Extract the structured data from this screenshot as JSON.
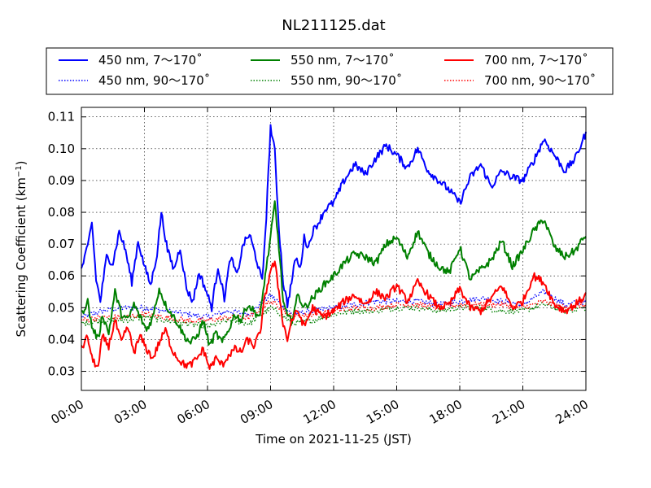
{
  "chart_data": {
    "type": "line",
    "title": "NL211125.dat",
    "xlabel": "Time on 2021-11-25 (JST)",
    "ylabel": "Scattering Coefficient (km",
    "ylabel_sup": "−1",
    "ylabel_close": ")",
    "xlim_hours": [
      0,
      24
    ],
    "ylim": [
      0.024,
      0.113
    ],
    "x_ticks": [
      {
        "h": 0,
        "label": "00:00"
      },
      {
        "h": 3,
        "label": "03:00"
      },
      {
        "h": 6,
        "label": "06:00"
      },
      {
        "h": 9,
        "label": "09:00"
      },
      {
        "h": 12,
        "label": "12:00"
      },
      {
        "h": 15,
        "label": "15:00"
      },
      {
        "h": 18,
        "label": "18:00"
      },
      {
        "h": 21,
        "label": "21:00"
      },
      {
        "h": 24,
        "label": "24:00"
      }
    ],
    "y_ticks": [
      {
        "v": 0.03,
        "label": "0.03"
      },
      {
        "v": 0.04,
        "label": "0.04"
      },
      {
        "v": 0.05,
        "label": "0.05"
      },
      {
        "v": 0.06,
        "label": "0.06"
      },
      {
        "v": 0.07,
        "label": "0.07"
      },
      {
        "v": 0.08,
        "label": "0.08"
      },
      {
        "v": 0.09,
        "label": "0.09"
      },
      {
        "v": 0.1,
        "label": "0.10"
      },
      {
        "v": 0.11,
        "label": "0.11"
      }
    ],
    "grid": true,
    "legend_position": "top",
    "series": [
      {
        "name": "450 nm, 7～170˚",
        "color": "#0000ff",
        "style": "solid",
        "x": [
          0.0,
          0.3,
          0.5,
          0.7,
          0.9,
          1.2,
          1.5,
          1.8,
          2.1,
          2.4,
          2.7,
          3.0,
          3.3,
          3.6,
          3.8,
          4.1,
          4.4,
          4.7,
          5.0,
          5.3,
          5.6,
          5.9,
          6.2,
          6.5,
          6.8,
          7.1,
          7.4,
          7.7,
          8.0,
          8.3,
          8.6,
          8.8,
          9.0,
          9.2,
          9.4,
          9.6,
          9.8,
          10.0,
          10.2,
          10.4,
          10.6,
          10.8,
          11.0,
          11.3,
          11.6,
          12.0,
          12.5,
          13.0,
          13.5,
          14.0,
          14.5,
          15.0,
          15.5,
          16.0,
          16.5,
          17.0,
          17.5,
          18.0,
          18.5,
          19.0,
          19.5,
          20.0,
          20.5,
          21.0,
          21.5,
          22.0,
          22.5,
          23.0,
          23.5,
          24.0
        ],
        "y": [
          0.062,
          0.069,
          0.077,
          0.059,
          0.052,
          0.066,
          0.064,
          0.074,
          0.068,
          0.058,
          0.071,
          0.063,
          0.057,
          0.067,
          0.08,
          0.068,
          0.062,
          0.069,
          0.056,
          0.052,
          0.061,
          0.056,
          0.05,
          0.063,
          0.053,
          0.066,
          0.06,
          0.07,
          0.073,
          0.066,
          0.058,
          0.079,
          0.107,
          0.099,
          0.075,
          0.058,
          0.051,
          0.058,
          0.066,
          0.062,
          0.072,
          0.069,
          0.074,
          0.077,
          0.081,
          0.083,
          0.09,
          0.095,
          0.092,
          0.097,
          0.101,
          0.098,
          0.094,
          0.1,
          0.093,
          0.09,
          0.087,
          0.083,
          0.091,
          0.095,
          0.088,
          0.093,
          0.091,
          0.09,
          0.096,
          0.103,
          0.098,
          0.093,
          0.097,
          0.105
        ]
      },
      {
        "name": "450 nm, 90～170˚",
        "color": "#0000ff",
        "style": "dotted",
        "x": [
          0.0,
          1.0,
          2.0,
          3.0,
          4.0,
          5.0,
          6.0,
          7.0,
          8.0,
          9.0,
          9.5,
          10.0,
          11.0,
          12.0,
          13.0,
          14.0,
          15.0,
          16.0,
          17.0,
          18.0,
          19.0,
          20.0,
          21.0,
          22.0,
          23.0,
          24.0
        ],
        "y": [
          0.047,
          0.049,
          0.05,
          0.05,
          0.049,
          0.048,
          0.047,
          0.049,
          0.048,
          0.054,
          0.051,
          0.048,
          0.049,
          0.05,
          0.051,
          0.052,
          0.052,
          0.052,
          0.051,
          0.052,
          0.053,
          0.052,
          0.051,
          0.055,
          0.051,
          0.052
        ]
      },
      {
        "name": "550 nm, 7～170˚",
        "color": "#008000",
        "style": "solid",
        "x": [
          0.0,
          0.3,
          0.5,
          0.8,
          1.0,
          1.3,
          1.6,
          1.9,
          2.2,
          2.5,
          2.8,
          3.1,
          3.4,
          3.7,
          4.0,
          4.3,
          4.6,
          4.9,
          5.2,
          5.5,
          5.8,
          6.1,
          6.4,
          6.7,
          7.0,
          7.3,
          7.6,
          7.9,
          8.2,
          8.5,
          8.7,
          9.0,
          9.2,
          9.4,
          9.6,
          9.8,
          10.0,
          10.3,
          10.6,
          11.0,
          11.5,
          12.0,
          12.5,
          13.0,
          13.5,
          14.0,
          14.5,
          15.0,
          15.5,
          16.0,
          16.5,
          17.0,
          17.5,
          18.0,
          18.5,
          19.0,
          19.5,
          20.0,
          20.5,
          21.0,
          21.5,
          22.0,
          22.5,
          23.0,
          23.5,
          24.0
        ],
        "y": [
          0.048,
          0.052,
          0.044,
          0.04,
          0.048,
          0.042,
          0.055,
          0.048,
          0.046,
          0.051,
          0.047,
          0.043,
          0.047,
          0.056,
          0.051,
          0.048,
          0.045,
          0.041,
          0.039,
          0.041,
          0.046,
          0.038,
          0.042,
          0.039,
          0.043,
          0.048,
          0.046,
          0.051,
          0.049,
          0.047,
          0.058,
          0.072,
          0.083,
          0.069,
          0.052,
          0.047,
          0.046,
          0.054,
          0.05,
          0.053,
          0.057,
          0.06,
          0.064,
          0.067,
          0.066,
          0.064,
          0.07,
          0.072,
          0.066,
          0.074,
          0.067,
          0.063,
          0.061,
          0.069,
          0.059,
          0.062,
          0.065,
          0.071,
          0.063,
          0.068,
          0.074,
          0.078,
          0.069,
          0.066,
          0.068,
          0.073
        ]
      },
      {
        "name": "550 nm, 90～170˚",
        "color": "#008000",
        "style": "dotted",
        "x": [
          0.0,
          1.0,
          2.0,
          3.0,
          4.0,
          5.0,
          6.0,
          7.0,
          8.0,
          9.0,
          9.5,
          10.0,
          11.0,
          12.0,
          13.0,
          14.0,
          15.0,
          16.0,
          17.0,
          18.0,
          19.0,
          20.0,
          21.0,
          22.0,
          23.0,
          24.0
        ],
        "y": [
          0.045,
          0.046,
          0.046,
          0.047,
          0.046,
          0.045,
          0.044,
          0.046,
          0.045,
          0.05,
          0.048,
          0.045,
          0.046,
          0.048,
          0.049,
          0.049,
          0.05,
          0.05,
          0.049,
          0.05,
          0.05,
          0.049,
          0.049,
          0.051,
          0.049,
          0.05
        ]
      },
      {
        "name": "700 nm, 7～170˚",
        "color": "#ff0000",
        "style": "solid",
        "x": [
          0.0,
          0.3,
          0.5,
          0.8,
          1.0,
          1.3,
          1.6,
          1.9,
          2.2,
          2.5,
          2.8,
          3.1,
          3.4,
          3.7,
          4.0,
          4.3,
          4.6,
          4.9,
          5.2,
          5.5,
          5.8,
          6.1,
          6.4,
          6.7,
          7.0,
          7.3,
          7.6,
          7.9,
          8.2,
          8.5,
          8.7,
          9.0,
          9.2,
          9.4,
          9.6,
          9.8,
          10.0,
          10.3,
          10.6,
          11.0,
          11.5,
          12.0,
          12.5,
          13.0,
          13.5,
          14.0,
          14.5,
          15.0,
          15.5,
          16.0,
          16.5,
          17.0,
          17.5,
          18.0,
          18.5,
          19.0,
          19.5,
          20.0,
          20.5,
          21.0,
          21.5,
          22.0,
          22.5,
          23.0,
          23.5,
          24.0
        ],
        "y": [
          0.037,
          0.041,
          0.034,
          0.031,
          0.041,
          0.038,
          0.046,
          0.039,
          0.044,
          0.036,
          0.041,
          0.037,
          0.034,
          0.039,
          0.043,
          0.037,
          0.034,
          0.032,
          0.032,
          0.034,
          0.037,
          0.031,
          0.034,
          0.032,
          0.035,
          0.037,
          0.036,
          0.04,
          0.038,
          0.042,
          0.052,
          0.062,
          0.064,
          0.055,
          0.045,
          0.04,
          0.046,
          0.049,
          0.044,
          0.05,
          0.047,
          0.049,
          0.052,
          0.054,
          0.051,
          0.055,
          0.053,
          0.057,
          0.052,
          0.058,
          0.054,
          0.05,
          0.051,
          0.056,
          0.05,
          0.049,
          0.053,
          0.057,
          0.05,
          0.052,
          0.06,
          0.058,
          0.051,
          0.049,
          0.051,
          0.054
        ]
      },
      {
        "name": "700 nm, 90～170˚",
        "color": "#ff0000",
        "style": "dotted",
        "x": [
          0.0,
          1.0,
          2.0,
          3.0,
          4.0,
          5.0,
          6.0,
          7.0,
          8.0,
          9.0,
          9.5,
          10.0,
          11.0,
          12.0,
          13.0,
          14.0,
          15.0,
          16.0,
          17.0,
          18.0,
          19.0,
          20.0,
          21.0,
          22.0,
          23.0,
          24.0
        ],
        "y": [
          0.046,
          0.047,
          0.047,
          0.048,
          0.047,
          0.046,
          0.046,
          0.047,
          0.047,
          0.052,
          0.05,
          0.047,
          0.048,
          0.049,
          0.05,
          0.05,
          0.051,
          0.051,
          0.05,
          0.051,
          0.051,
          0.051,
          0.05,
          0.052,
          0.05,
          0.051
        ]
      }
    ]
  }
}
